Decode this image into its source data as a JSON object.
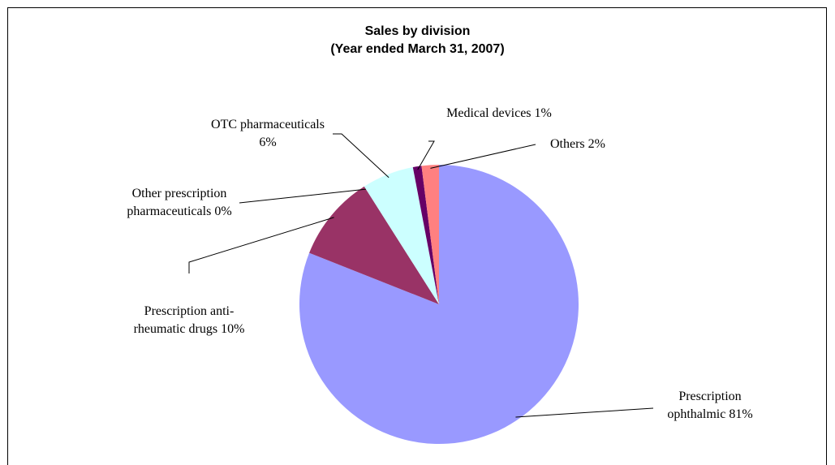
{
  "chart_data": {
    "type": "pie",
    "title": "Sales by division",
    "subtitle": "(Year ended March 31, 2007)",
    "categories": [
      "Prescription ophthalmic",
      "Prescription anti-rheumatic drugs",
      "Other prescription pharmaceuticals",
      "OTC pharmaceuticals",
      "Medical devices",
      "Others"
    ],
    "values": [
      81,
      10,
      0,
      6,
      1,
      2
    ],
    "value_labels": [
      "81%",
      "10%",
      "0%",
      "6%",
      "1%",
      "2%"
    ],
    "colors": [
      "#9999ff",
      "#993366",
      "#ffffcc",
      "#ccffff",
      "#660066",
      "#ff8080"
    ]
  }
}
